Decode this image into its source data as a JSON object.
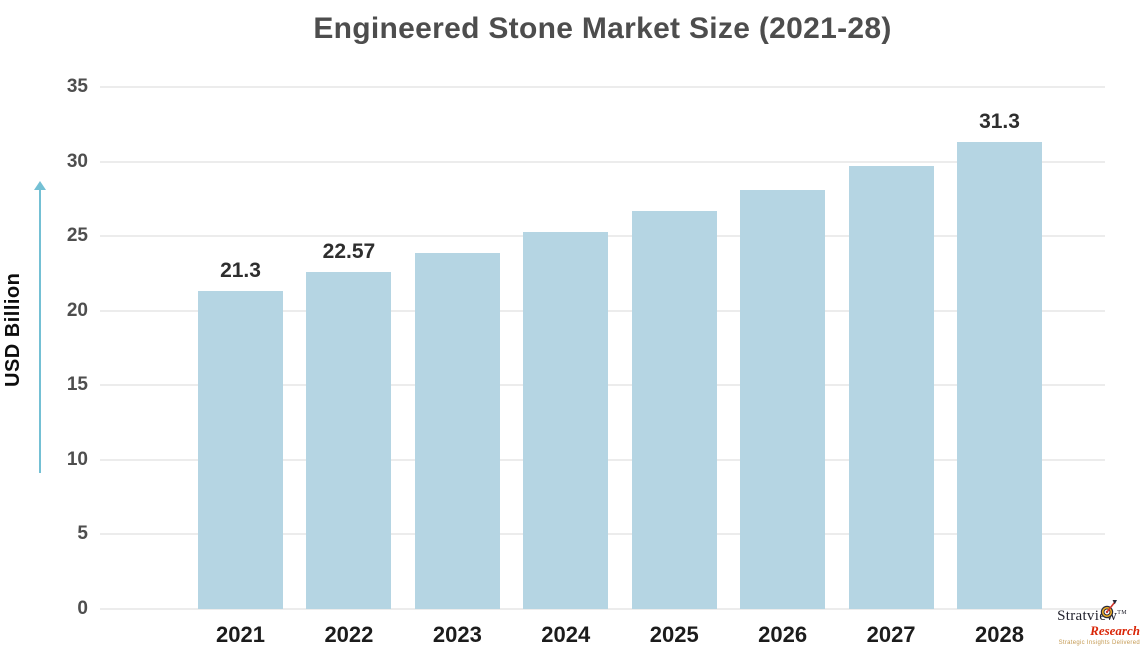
{
  "title": "Engineered Stone Market Size (2021-28)",
  "y_axis": {
    "label": "USD Billion",
    "ticks": [
      "35",
      "30",
      "25",
      "20",
      "15",
      "10",
      "5",
      "0"
    ]
  },
  "chart_data": {
    "type": "bar",
    "title": "Engineered Stone Market Size (2021-28)",
    "categories": [
      "2021",
      "2022",
      "2023",
      "2024",
      "2025",
      "2026",
      "2027",
      "2028"
    ],
    "values": [
      21.3,
      22.57,
      23.9,
      25.3,
      26.7,
      28.1,
      29.7,
      31.3
    ],
    "bar_labels": [
      "21.3",
      "22.57",
      "",
      "",
      "",
      "",
      "",
      "31.3"
    ],
    "xlabel": "",
    "ylabel": "USD Billion",
    "ylim": [
      0,
      35
    ],
    "ytick_step": 5,
    "grid": true,
    "legend": false,
    "bar_color": "#b5d5e3"
  },
  "colors": {
    "bar": "#b5d5e3",
    "title_text": "#4d4d4d",
    "tick_text": "#4e4e4e",
    "x_label_text": "#1c1c1c",
    "data_label_text": "#2e2e2e",
    "gridline": "#ececec",
    "arrow": "#74c0d4",
    "logo_red": "#d92507",
    "logo_dark": "#23232e",
    "logo_tagline": "#c49a53"
  },
  "logo": {
    "name": "Stratview",
    "tm": "TM",
    "sub": "Research",
    "tagline": "Strategic Insights Delivered"
  }
}
